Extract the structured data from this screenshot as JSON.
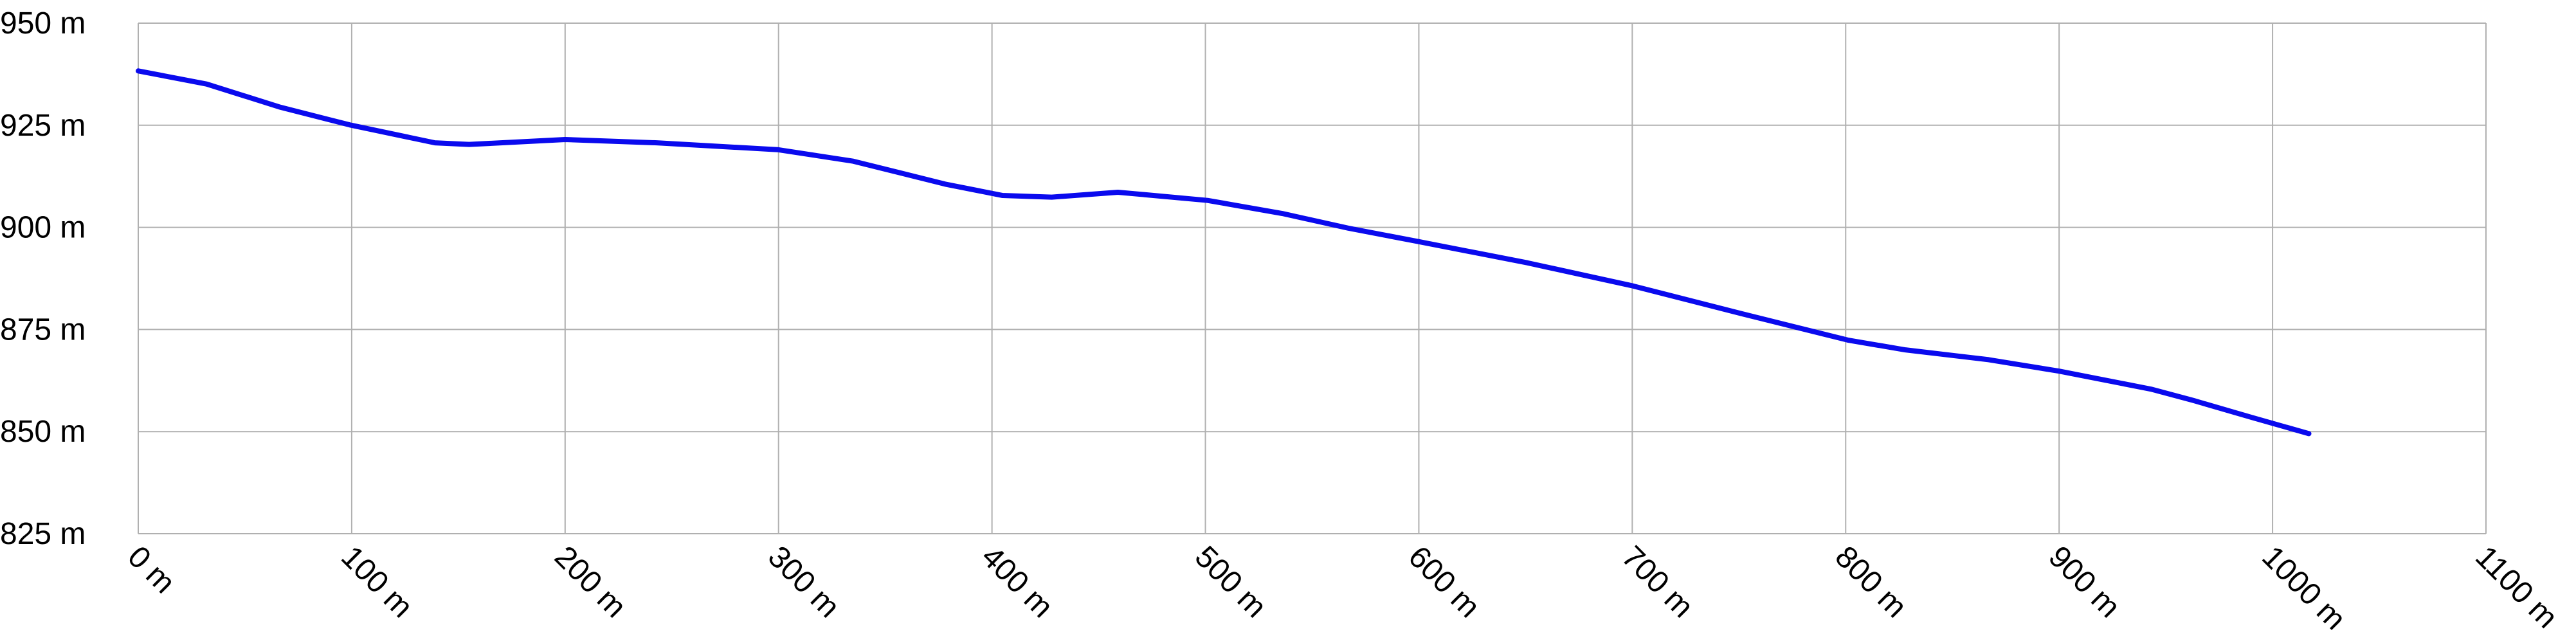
{
  "chart_data": {
    "type": "line",
    "x": [
      0,
      32,
      66,
      99,
      139,
      155,
      200,
      243,
      300,
      335,
      378,
      405,
      428,
      459,
      501,
      536,
      567,
      600,
      651,
      700,
      751,
      801,
      828,
      867,
      900,
      943,
      963,
      990,
      1017
    ],
    "series": [
      {
        "color": "#0a0aee",
        "values": [
          938.3,
          935.1,
          929.5,
          925.1,
          920.7,
          920.3,
          921.5,
          920.7,
          919,
          916.2,
          910.6,
          907.8,
          907.4,
          908.6,
          906.6,
          903.4,
          899.8,
          896.5,
          891.3,
          885.7,
          878.9,
          872.4,
          870,
          867.6,
          864.8,
          860.4,
          857.6,
          853.5,
          849.5
        ]
      }
    ],
    "xlim": [
      0,
      1100
    ],
    "xticks": [
      {
        "value": 0,
        "label": "0 m"
      },
      {
        "value": 100,
        "label": "100 m"
      },
      {
        "value": 200,
        "label": "200 m"
      },
      {
        "value": 300,
        "label": "300 m"
      },
      {
        "value": 400,
        "label": "400 m"
      },
      {
        "value": 500,
        "label": "500 m"
      },
      {
        "value": 600,
        "label": "600 m"
      },
      {
        "value": 700,
        "label": "700 m"
      },
      {
        "value": 800,
        "label": "800 m"
      },
      {
        "value": 900,
        "label": "900 m"
      },
      {
        "value": 1000,
        "label": "1000 m"
      },
      {
        "value": 1100,
        "label": "1100 m"
      }
    ],
    "ylim": [
      825,
      950
    ],
    "yticks": [
      {
        "value": 825,
        "label": "825 m"
      },
      {
        "value": 850,
        "label": "850 m"
      },
      {
        "value": 875,
        "label": "875 m"
      },
      {
        "value": 900,
        "label": "900 m"
      },
      {
        "value": 925,
        "label": "925 m"
      },
      {
        "value": 950,
        "label": "950 m"
      }
    ],
    "grid": true
  }
}
